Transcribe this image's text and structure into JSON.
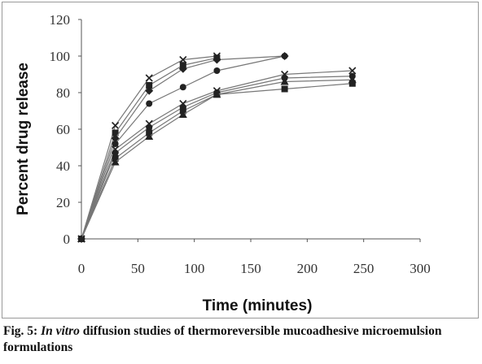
{
  "caption": {
    "fig_label": "Fig. 5:",
    "italic": "In vitro",
    "rest": " diffusion studies of thermoreversible mucoadhesive microemulsion formulations"
  },
  "chart_data": {
    "type": "line",
    "title": "",
    "xlabel": "Time (minutes)",
    "ylabel": "Percent drug release",
    "xlim": [
      0,
      300
    ],
    "ylim": [
      0,
      120
    ],
    "xticks": [
      0,
      50,
      100,
      150,
      200,
      250,
      300
    ],
    "yticks": [
      0,
      20,
      40,
      60,
      80,
      100,
      120
    ],
    "grid": false,
    "legend": "none",
    "line_color": "#777777",
    "marker_color": "#222222",
    "series": [
      {
        "marker": "x",
        "x": [
          0,
          30,
          60,
          90,
          120
        ],
        "y": [
          0,
          62,
          88,
          98,
          100
        ]
      },
      {
        "marker": "square",
        "x": [
          0,
          30,
          60,
          90,
          120
        ],
        "y": [
          0,
          58,
          84,
          95,
          99
        ]
      },
      {
        "marker": "diamond",
        "x": [
          0,
          30,
          60,
          90,
          120,
          180
        ],
        "y": [
          0,
          55,
          81,
          93,
          98,
          100
        ]
      },
      {
        "marker": "circle",
        "x": [
          0,
          30,
          60,
          90,
          120,
          180
        ],
        "y": [
          0,
          52,
          74,
          83,
          92,
          100
        ]
      },
      {
        "marker": "x",
        "x": [
          0,
          30,
          60,
          90,
          120,
          180,
          240
        ],
        "y": [
          0,
          49,
          63,
          74,
          81,
          90,
          92
        ]
      },
      {
        "marker": "circle",
        "x": [
          0,
          30,
          60,
          90,
          120,
          180,
          240
        ],
        "y": [
          0,
          47,
          61,
          72,
          80,
          88,
          89
        ]
      },
      {
        "marker": "square",
        "x": [
          0,
          30,
          60,
          90,
          120,
          180,
          240
        ],
        "y": [
          0,
          44,
          58,
          70,
          79,
          82,
          85
        ]
      },
      {
        "marker": "triangle",
        "x": [
          0,
          30,
          60,
          90,
          120,
          180,
          240
        ],
        "y": [
          0,
          42,
          56,
          68,
          79,
          86,
          87
        ]
      }
    ]
  }
}
